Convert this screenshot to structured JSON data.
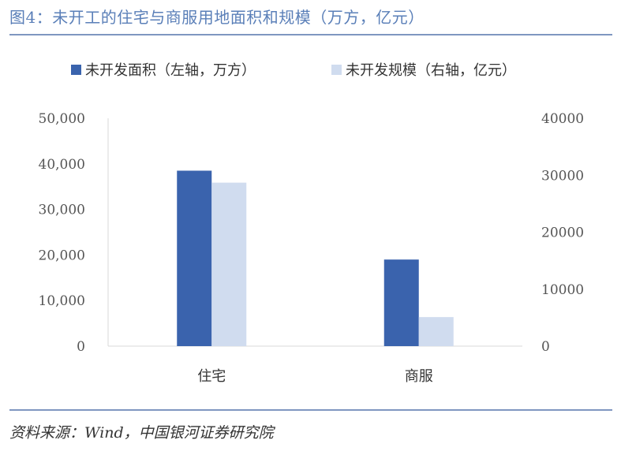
{
  "title": "图4：未开工的住宅与商服用地面积和规模（万方，亿元）",
  "source": "资料来源：Wind，中国银河证券研究院",
  "colors": {
    "area": "#3a63ad",
    "scale": "#d0dcef",
    "accent": "#5a7fb8"
  },
  "chart_data": {
    "type": "bar",
    "categories": [
      "住宅",
      "商服"
    ],
    "series": [
      {
        "name": "未开发面积（左轴，万方）",
        "axis": "left",
        "values": [
          38500,
          19000
        ]
      },
      {
        "name": "未开发规模（右轴，亿元）",
        "axis": "right",
        "values": [
          28700,
          5100
        ]
      }
    ],
    "y_left": {
      "range": [
        0,
        50000
      ],
      "ticks": [
        "0",
        "10,000",
        "20,000",
        "30,000",
        "40,000",
        "50,000"
      ]
    },
    "y_right": {
      "range": [
        0,
        40000
      ],
      "ticks": [
        "0",
        "10000",
        "20000",
        "30000",
        "40000"
      ]
    },
    "legend_position": "top-left",
    "grid": false
  }
}
